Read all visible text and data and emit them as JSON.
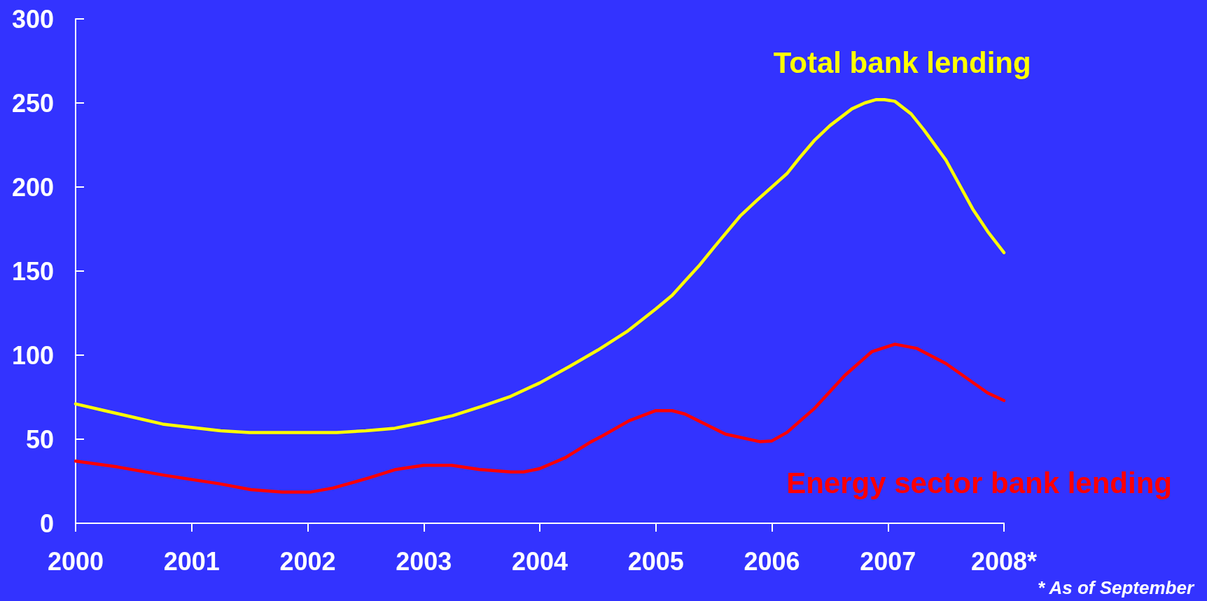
{
  "chart_data": {
    "type": "line",
    "annotations": [
      "* As of September"
    ],
    "series": [
      {
        "name": "Total bank lending",
        "color": "#ffff00",
        "x": [
          2000,
          2000.25,
          2000.5,
          2000.75,
          2001,
          2001.25,
          2001.5,
          2001.75,
          2002,
          2002.25,
          2002.5,
          2002.75,
          2003,
          2003.25,
          2003.5,
          2003.75,
          2004,
          2004.25,
          2004.5,
          2004.75,
          2005,
          2005.14,
          2005.25,
          2005.37,
          2005.5,
          2005.73,
          2005.87,
          2006.13,
          2006.24,
          2006.37,
          2006.5,
          2006.69,
          2006.8,
          2006.9,
          2006.97,
          2007.06,
          2007.2,
          2007.31,
          2007.5,
          2007.73,
          2007.86,
          2008
        ],
        "values": [
          71,
          67,
          63,
          59,
          57,
          55,
          54,
          54,
          54,
          54,
          55,
          56.5,
          60,
          64,
          69.5,
          75.5,
          83.5,
          93,
          103,
          114,
          127.5,
          135.5,
          144,
          153,
          164,
          183,
          192,
          208,
          217.5,
          228,
          236.5,
          246.5,
          250,
          252,
          252,
          251,
          243.5,
          234,
          216,
          187,
          173.5,
          161
        ]
      },
      {
        "name": "Energy sector bank lending",
        "color": "#ff0000",
        "x": [
          2000,
          2000.36,
          2000.77,
          2001.24,
          2001.51,
          2001.78,
          2002.02,
          2002.22,
          2002.53,
          2002.76,
          2003,
          2003.24,
          2003.48,
          2003.75,
          2003.86,
          2004,
          2004.22,
          2004.43,
          2004.54,
          2004.77,
          2005,
          2005.14,
          2005.25,
          2005.6,
          2005.9,
          2006,
          2006.13,
          2006.37,
          2006.63,
          2006.86,
          2007.06,
          2007.25,
          2007.5,
          2007.86,
          2008
        ],
        "values": [
          37,
          33.5,
          28.5,
          23.5,
          20,
          18.5,
          18.5,
          21,
          27,
          32,
          34.5,
          34.5,
          32,
          30.5,
          30.5,
          32.5,
          39,
          48,
          52,
          61,
          67,
          67,
          65,
          53,
          48.5,
          49,
          54,
          68.5,
          88,
          102,
          106.5,
          104,
          95,
          77.5,
          73
        ]
      }
    ],
    "xlim": [
      2000,
      2008
    ],
    "xticks": [
      2000,
      2001,
      2002,
      2003,
      2004,
      2005,
      2006,
      2007,
      {
        "value": 2008,
        "label": "2008*"
      }
    ],
    "ylim": [
      0,
      300
    ],
    "yticks": [
      0,
      50,
      100,
      150,
      200,
      250,
      300
    ],
    "grid": false,
    "legend": false,
    "marker": "none",
    "line_style": "solid"
  }
}
